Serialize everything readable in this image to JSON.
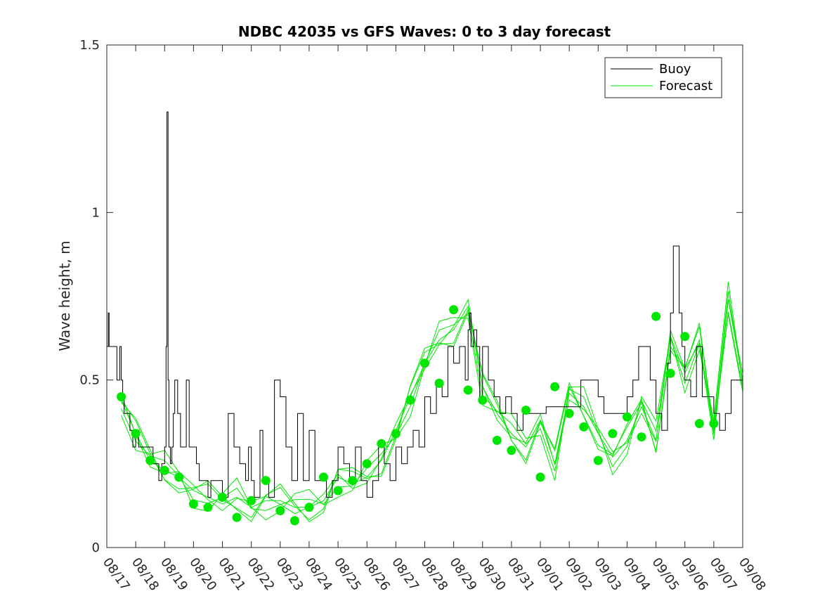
{
  "chart_data": {
    "type": "line",
    "title": "NDBC 42035 vs GFS Waves: 0 to 3 day forecast",
    "xlabel": "",
    "ylabel": "Wave height, m",
    "xlim": [
      0,
      22
    ],
    "ylim": [
      0,
      1.5
    ],
    "x_tick_labels": [
      "08/17",
      "08/18",
      "08/19",
      "08/20",
      "08/21",
      "08/22",
      "08/23",
      "08/24",
      "08/25",
      "08/26",
      "08/27",
      "08/28",
      "08/29",
      "08/30",
      "08/31",
      "09/01",
      "09/02",
      "09/03",
      "09/04",
      "09/05",
      "09/06",
      "09/07",
      "09/08"
    ],
    "y_ticks": [
      0,
      0.5,
      1,
      1.5
    ],
    "y_tick_labels": [
      "0",
      "0.5",
      "1",
      "1.5"
    ],
    "legend": {
      "position": "top-right",
      "entries": [
        {
          "label": "Buoy",
          "color": "#000000"
        },
        {
          "label": "Forecast",
          "color": "#00e600"
        }
      ]
    },
    "colors": {
      "buoy": "#000000",
      "forecast": "#00e600",
      "markers": "#00e600",
      "axes": "#262626"
    },
    "series": [
      {
        "name": "Buoy",
        "x": [
          0,
          0.05,
          0.08,
          0.12,
          0.2,
          0.3,
          0.35,
          0.45,
          0.5,
          0.55,
          0.6,
          0.7,
          0.8,
          0.9,
          1.0,
          1.1,
          1.2,
          1.3,
          1.4,
          1.5,
          1.6,
          1.7,
          1.8,
          1.9,
          2.0,
          2.05,
          2.08,
          2.12,
          2.15,
          2.2,
          2.25,
          2.3,
          2.35,
          2.45,
          2.55,
          2.65,
          2.75,
          2.85,
          3.0,
          3.1,
          3.2,
          3.3,
          3.4,
          3.5,
          3.6,
          3.8,
          4.0,
          4.2,
          4.4,
          4.6,
          4.8,
          4.9,
          5.0,
          5.1,
          5.3,
          5.4,
          5.6,
          5.8,
          6.0,
          6.2,
          6.4,
          6.6,
          6.8,
          7.0,
          7.2,
          7.4,
          7.6,
          7.8,
          8.0,
          8.2,
          8.4,
          8.6,
          8.8,
          9.0,
          9.2,
          9.4,
          9.6,
          9.8,
          10.0,
          10.2,
          10.4,
          10.6,
          10.8,
          11.0,
          11.2,
          11.4,
          11.6,
          11.8,
          12.0,
          12.2,
          12.4,
          12.5,
          12.55,
          12.6,
          12.7,
          12.8,
          12.9,
          13.0,
          13.2,
          13.4,
          13.6,
          13.8,
          14.0,
          14.2,
          14.4,
          14.6,
          14.8,
          15.0,
          15.2,
          16.4,
          16.8,
          17.0,
          17.2,
          17.5,
          18.0,
          18.2,
          18.4,
          18.6,
          18.8,
          19.0,
          19.2,
          19.4,
          19.5,
          19.6,
          19.7,
          19.8,
          19.9,
          20.0,
          20.2,
          20.4,
          20.6,
          20.8,
          21.0,
          21.2,
          21.4,
          21.6,
          22.0
        ],
        "values": [
          0.6,
          0.7,
          0.6,
          0.6,
          0.6,
          0.6,
          0.5,
          0.6,
          0.5,
          0.45,
          0.4,
          0.4,
          0.35,
          0.3,
          0.35,
          0.3,
          0.3,
          0.3,
          0.3,
          0.3,
          0.25,
          0.25,
          0.2,
          0.25,
          0.3,
          0.6,
          1.3,
          0.5,
          0.3,
          0.25,
          0.3,
          0.4,
          0.5,
          0.4,
          0.3,
          0.3,
          0.5,
          0.3,
          0.3,
          0.25,
          0.2,
          0.2,
          0.2,
          0.15,
          0.2,
          0.2,
          0.15,
          0.4,
          0.3,
          0.25,
          0.2,
          0.3,
          0.2,
          0.15,
          0.35,
          0.2,
          0.15,
          0.5,
          0.45,
          0.3,
          0.2,
          0.4,
          0.2,
          0.35,
          0.2,
          0.2,
          0.15,
          0.2,
          0.3,
          0.25,
          0.2,
          0.3,
          0.2,
          0.15,
          0.2,
          0.3,
          0.25,
          0.2,
          0.3,
          0.25,
          0.3,
          0.35,
          0.3,
          0.45,
          0.4,
          0.5,
          0.45,
          0.6,
          0.55,
          0.6,
          0.5,
          0.65,
          0.7,
          0.6,
          0.65,
          0.6,
          0.45,
          0.6,
          0.5,
          0.45,
          0.4,
          0.45,
          0.4,
          0.35,
          0.4,
          0.4,
          0.4,
          0.4,
          0.42,
          0.5,
          0.5,
          0.45,
          0.4,
          0.4,
          0.45,
          0.5,
          0.6,
          0.6,
          0.5,
          0.4,
          0.35,
          0.55,
          0.7,
          0.9,
          0.9,
          0.7,
          0.6,
          0.5,
          0.45,
          0.6,
          0.45,
          0.45,
          0.4,
          0.35,
          0.4,
          0.5,
          0.5
        ]
      },
      {
        "name": "Forecast",
        "x": [
          0.5,
          1.0,
          1.5,
          2.0,
          2.5,
          3.0,
          3.5,
          4.0,
          4.5,
          5.0,
          5.5,
          6.0,
          6.5,
          7.0,
          7.5,
          8.0,
          8.5,
          9.0,
          9.5,
          10.0,
          10.5,
          11.0,
          11.5,
          12.0,
          12.5,
          13.0,
          13.5,
          14.0,
          14.5,
          15.0,
          15.5,
          16.0,
          16.5,
          17.0,
          17.5,
          18.0,
          18.5,
          19.0,
          19.5,
          20.0,
          20.5,
          21.0,
          21.5,
          22.0
        ],
        "values": [
          0.44,
          0.34,
          0.26,
          0.23,
          0.21,
          0.17,
          0.15,
          0.13,
          0.15,
          0.12,
          0.14,
          0.14,
          0.12,
          0.12,
          0.14,
          0.21,
          0.19,
          0.21,
          0.26,
          0.35,
          0.45,
          0.55,
          0.62,
          0.65,
          0.72,
          0.48,
          0.4,
          0.34,
          0.3,
          0.38,
          0.25,
          0.46,
          0.42,
          0.34,
          0.27,
          0.32,
          0.42,
          0.32,
          0.63,
          0.52,
          0.62,
          0.34,
          0.74,
          0.5
        ]
      }
    ],
    "forecast_markers": {
      "x": [
        0.5,
        1.0,
        1.5,
        2.0,
        2.5,
        3.0,
        3.5,
        4.0,
        4.5,
        5.0,
        5.5,
        6.0,
        6.5,
        7.0,
        7.5,
        8.0,
        8.5,
        9.0,
        9.5,
        10.0,
        10.5,
        11.0,
        11.5,
        12.0,
        12.5,
        13.0,
        13.5,
        14.0,
        14.5,
        15.0,
        15.5,
        16.0,
        16.5,
        17.0,
        17.5,
        18.0,
        18.5,
        19.0,
        19.5,
        20.0,
        20.5,
        21.0
      ],
      "values": [
        0.45,
        0.34,
        0.26,
        0.23,
        0.21,
        0.13,
        0.12,
        0.15,
        0.09,
        0.14,
        0.2,
        0.11,
        0.08,
        0.12,
        0.21,
        0.17,
        0.2,
        0.25,
        0.31,
        0.34,
        0.44,
        0.55,
        0.49,
        0.71,
        0.47,
        0.44,
        0.32,
        0.29,
        0.41,
        0.21,
        0.48,
        0.4,
        0.36,
        0.26,
        0.34,
        0.39,
        0.33,
        0.69,
        0.52,
        0.63,
        0.37,
        0.37
      ]
    }
  }
}
